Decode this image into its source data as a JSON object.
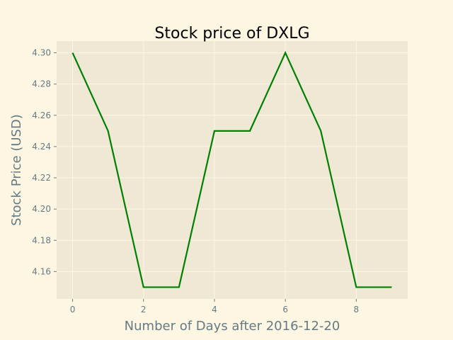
{
  "chart_data": {
    "type": "line",
    "title": "Stock price of DXLG",
    "xlabel": "Number of Days after 2016-12-20",
    "ylabel": "Stock Price (USD)",
    "x": [
      0,
      1,
      2,
      3,
      4,
      5,
      6,
      7,
      8,
      9
    ],
    "series": [
      {
        "values": [
          4.3,
          4.25,
          4.15,
          4.15,
          4.25,
          4.25,
          4.3,
          4.25,
          4.15,
          4.15
        ]
      }
    ],
    "xlim": [
      -0.45,
      9.45
    ],
    "ylim": [
      4.1425,
      4.3075
    ],
    "xticks": [
      0,
      2,
      4,
      6,
      8
    ],
    "yticks": [
      4.16,
      4.18,
      4.2,
      4.22,
      4.24,
      4.26,
      4.28,
      4.3
    ],
    "ytick_labels": [
      "4.16",
      "4.18",
      "4.20",
      "4.22",
      "4.24",
      "4.26",
      "4.28",
      "4.30"
    ],
    "grid": true,
    "colors": {
      "page_background": "#fdf6e3",
      "plot_background": "#eee8d5",
      "grid": "#fdf6e3",
      "line": "#008000",
      "text": "#657b83"
    }
  }
}
